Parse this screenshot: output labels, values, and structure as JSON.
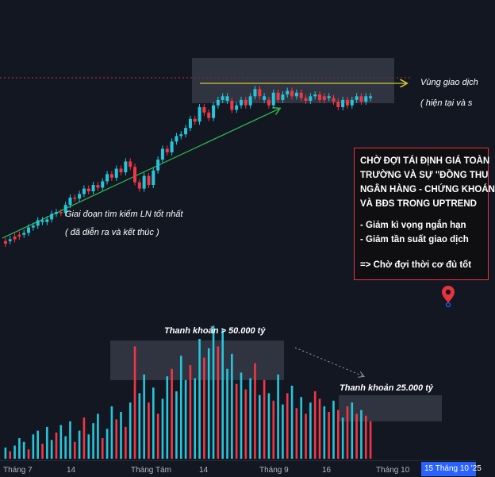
{
  "chart_data": {
    "type": "candlestick",
    "price_candles": [
      [
        0,
        40
      ],
      [
        1,
        42
      ],
      [
        0,
        45
      ],
      [
        0,
        47
      ],
      [
        1,
        49
      ],
      [
        1,
        55
      ],
      [
        1,
        57
      ],
      [
        1,
        63
      ],
      [
        1,
        61
      ],
      [
        1,
        64
      ],
      [
        1,
        70
      ],
      [
        1,
        72
      ],
      [
        0,
        71
      ],
      [
        1,
        80
      ],
      [
        1,
        88
      ],
      [
        0,
        87
      ],
      [
        1,
        92
      ],
      [
        1,
        98
      ],
      [
        0,
        95
      ],
      [
        1,
        102
      ],
      [
        0,
        99
      ],
      [
        1,
        106
      ],
      [
        1,
        114
      ],
      [
        0,
        110
      ],
      [
        1,
        120
      ],
      [
        0,
        116
      ],
      [
        1,
        128
      ],
      [
        0,
        122
      ],
      [
        0,
        105
      ],
      [
        0,
        98
      ],
      [
        1,
        112
      ],
      [
        0,
        102
      ],
      [
        1,
        118
      ],
      [
        1,
        130
      ],
      [
        1,
        142
      ],
      [
        0,
        138
      ],
      [
        1,
        150
      ],
      [
        1,
        156
      ],
      [
        1,
        158
      ],
      [
        1,
        165
      ],
      [
        1,
        175
      ],
      [
        0,
        172
      ],
      [
        1,
        188
      ],
      [
        0,
        182
      ],
      [
        0,
        176
      ],
      [
        1,
        190
      ],
      [
        1,
        196
      ],
      [
        1,
        200
      ],
      [
        1,
        195
      ],
      [
        0,
        185
      ],
      [
        1,
        190
      ],
      [
        1,
        196
      ],
      [
        0,
        190
      ],
      [
        1,
        200
      ],
      [
        1,
        208
      ],
      [
        0,
        200
      ],
      [
        1,
        196
      ],
      [
        0,
        190
      ],
      [
        1,
        204
      ],
      [
        0,
        196
      ],
      [
        1,
        202
      ],
      [
        1,
        206
      ],
      [
        0,
        200
      ],
      [
        1,
        204
      ],
      [
        0,
        198
      ],
      [
        0,
        195
      ],
      [
        1,
        200
      ],
      [
        1,
        202
      ],
      [
        0,
        196
      ],
      [
        0,
        200
      ],
      [
        1,
        198
      ],
      [
        0,
        194
      ],
      [
        0,
        188
      ],
      [
        1,
        196
      ],
      [
        0,
        190
      ],
      [
        1,
        196
      ],
      [
        1,
        200
      ],
      [
        0,
        194
      ],
      [
        1,
        200
      ],
      [
        1,
        198
      ]
    ],
    "volume_bars": [
      [
        1,
        12
      ],
      [
        0,
        8
      ],
      [
        1,
        14
      ],
      [
        1,
        22
      ],
      [
        1,
        18
      ],
      [
        0,
        10
      ],
      [
        1,
        26
      ],
      [
        1,
        30
      ],
      [
        0,
        16
      ],
      [
        1,
        34
      ],
      [
        1,
        20
      ],
      [
        0,
        28
      ],
      [
        1,
        36
      ],
      [
        1,
        24
      ],
      [
        1,
        40
      ],
      [
        0,
        18
      ],
      [
        1,
        30
      ],
      [
        0,
        44
      ],
      [
        1,
        26
      ],
      [
        1,
        38
      ],
      [
        1,
        48
      ],
      [
        0,
        22
      ],
      [
        1,
        32
      ],
      [
        1,
        56
      ],
      [
        0,
        42
      ],
      [
        1,
        50
      ],
      [
        0,
        34
      ],
      [
        1,
        60
      ],
      [
        0,
        120
      ],
      [
        1,
        70
      ],
      [
        1,
        90
      ],
      [
        0,
        60
      ],
      [
        1,
        76
      ],
      [
        0,
        48
      ],
      [
        1,
        64
      ],
      [
        1,
        88
      ],
      [
        0,
        96
      ],
      [
        1,
        72
      ],
      [
        1,
        110
      ],
      [
        1,
        84
      ],
      [
        0,
        100
      ],
      [
        1,
        86
      ],
      [
        1,
        128
      ],
      [
        0,
        108
      ],
      [
        1,
        118
      ],
      [
        1,
        142
      ],
      [
        0,
        120
      ],
      [
        1,
        138
      ],
      [
        1,
        96
      ],
      [
        1,
        112
      ],
      [
        0,
        80
      ],
      [
        1,
        92
      ],
      [
        0,
        74
      ],
      [
        1,
        86
      ],
      [
        0,
        102
      ],
      [
        1,
        68
      ],
      [
        0,
        84
      ],
      [
        1,
        70
      ],
      [
        0,
        62
      ],
      [
        1,
        90
      ],
      [
        1,
        58
      ],
      [
        0,
        70
      ],
      [
        1,
        78
      ],
      [
        0,
        54
      ],
      [
        1,
        66
      ],
      [
        0,
        48
      ],
      [
        1,
        60
      ],
      [
        0,
        72
      ],
      [
        0,
        64
      ],
      [
        1,
        56
      ],
      [
        0,
        50
      ],
      [
        1,
        62
      ],
      [
        0,
        52
      ],
      [
        1,
        44
      ],
      [
        0,
        56
      ],
      [
        1,
        60
      ],
      [
        0,
        48
      ],
      [
        1,
        52
      ],
      [
        0,
        46
      ],
      [
        0,
        40
      ]
    ],
    "annotations": {
      "zone": "Vùng giao dịch",
      "zone_sub": "( hiện tại và s",
      "phase": "Giai đoạn tìm kiếm LN tốt nhất",
      "phase_sub": "( đã diễn ra và kết thúc )",
      "liq_high": "Thanh khoản > 50.000 tỷ",
      "liq_low": "Thanh khoản 25.000 tỷ"
    },
    "note_lines": [
      "CHỜ ĐỢI TÁI ĐỊNH GIÁ TOÀN",
      "TRƯỜNG VÀ SỰ \"ĐỒNG THU",
      "NGÂN HÀNG - CHỨNG KHOÁN",
      "VÀ BĐS TRONG UPTREND",
      "- Giảm kì vọng ngắn hạn",
      "- Giảm tần suất giao dịch",
      "=> Chờ đợi thời cơ đủ tốt"
    ],
    "x_ticks": [
      "Tháng 7",
      "14",
      "Tháng Tám",
      "14",
      "Tháng 9",
      "16",
      "Tháng 10"
    ],
    "current_date": "15 Tháng 10 '25",
    "colors": {
      "up": "#26c6da",
      "down": "#f23645",
      "trend": "#2db34a",
      "zone_line": "#d4c832",
      "note_border": "#e8323c",
      "badge": "#2962ff",
      "background": "#131722"
    }
  }
}
